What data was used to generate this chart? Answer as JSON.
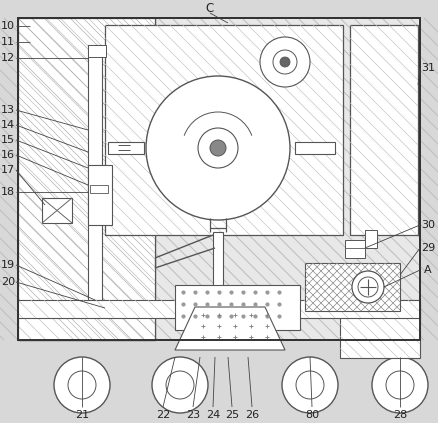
{
  "figsize": [
    4.38,
    4.23
  ],
  "dpi": 100,
  "bg_color": "#d8d8d8",
  "lc": "#555555",
  "lc_dark": "#333333"
}
